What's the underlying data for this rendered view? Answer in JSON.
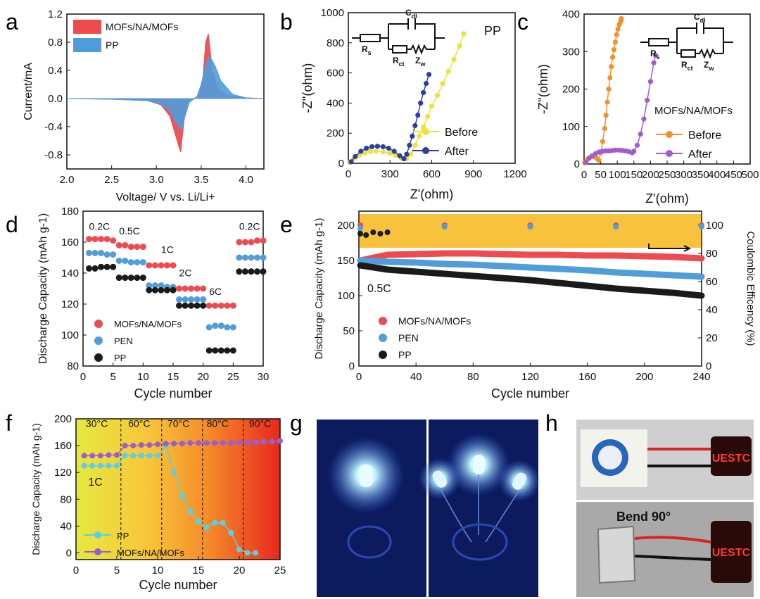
{
  "colors": {
    "red": "#ee4b50",
    "blue": "#4f9ddb",
    "black": "#1a1a1a",
    "yellow": "#f0e03c",
    "navy": "#2b3da8",
    "orange": "#f29126",
    "purple": "#a15bd0",
    "band": "#f9c23c",
    "cyan": "#5ad0e6",
    "violet": "#9a5fcf"
  },
  "panels": {
    "a": "a",
    "b": "b",
    "c": "c",
    "d": "d",
    "e": "e",
    "f": "f",
    "g": "g",
    "h": "h"
  },
  "photos": {
    "g": {
      "caption": "LED lighting photographs"
    },
    "h": {
      "bend_label": "Bend 90°",
      "sign_text": "UESTC"
    }
  },
  "chart_data": [
    {
      "id": "a",
      "type": "area",
      "title": "",
      "xlabel": "Voltage/ V vs. Li/Li+",
      "ylabel": "Current/mA",
      "xlim": [
        2.0,
        4.2
      ],
      "ylim": [
        -1.0,
        1.2
      ],
      "xticks": [
        "2.0",
        "2.5",
        "3.0",
        "3.5",
        "4.0"
      ],
      "yticks": [
        "-0.8",
        "-0.4",
        "0.0",
        "0.4",
        "0.8",
        "1.2"
      ],
      "series": [
        {
          "name": "MOFs/NA/MOFs",
          "color": "#ee4b50",
          "x": [
            2.0,
            2.5,
            2.9,
            3.05,
            3.15,
            3.22,
            3.27,
            3.31,
            3.35,
            3.42,
            3.48,
            3.52,
            3.55,
            3.58,
            3.62,
            3.68,
            3.8,
            4.0,
            4.2
          ],
          "y": [
            0.0,
            -0.01,
            -0.03,
            -0.09,
            -0.25,
            -0.55,
            -0.76,
            -0.3,
            -0.05,
            0.0,
            0.05,
            0.3,
            0.8,
            0.92,
            0.45,
            0.15,
            0.04,
            0.01,
            0.0
          ]
        },
        {
          "name": "PP",
          "color": "#4f9ddb",
          "x": [
            2.0,
            2.5,
            2.9,
            3.05,
            3.15,
            3.22,
            3.28,
            3.32,
            3.37,
            3.45,
            3.5,
            3.55,
            3.58,
            3.62,
            3.66,
            3.72,
            3.85,
            4.0,
            4.2
          ],
          "y": [
            0.0,
            -0.01,
            -0.03,
            -0.08,
            -0.18,
            -0.35,
            -0.45,
            -0.25,
            -0.05,
            0.02,
            0.2,
            0.48,
            0.6,
            0.55,
            0.45,
            0.25,
            0.06,
            0.01,
            0.0
          ]
        }
      ]
    },
    {
      "id": "b",
      "type": "scatter",
      "title": "",
      "label": "PP",
      "xlabel": "Z'(ohm)",
      "ylabel": "-Z''(ohm)",
      "xlim": [
        0,
        1200
      ],
      "ylim": [
        0,
        1000
      ],
      "xticks": [
        "0",
        "300",
        "600",
        "900",
        "1200"
      ],
      "yticks": [
        "0",
        "200",
        "400",
        "600",
        "800",
        "1000"
      ],
      "circuit": {
        "rs": "R",
        "rs_sub": "s",
        "rct": "R",
        "rct_sub": "ct",
        "cdl": "C",
        "cdl_sub": "dl",
        "zw": "Z",
        "zw_sub": "w"
      },
      "series": [
        {
          "name": "Before",
          "color": "#f0e03c",
          "x": [
            10,
            40,
            80,
            120,
            160,
            200,
            250,
            300,
            340,
            380,
            420,
            450,
            480,
            510,
            540,
            570,
            600,
            640,
            680,
            720,
            760,
            800,
            830
          ],
          "y": [
            5,
            30,
            55,
            70,
            78,
            80,
            76,
            66,
            52,
            35,
            30,
            60,
            120,
            180,
            240,
            310,
            380,
            450,
            530,
            610,
            690,
            780,
            860
          ]
        },
        {
          "name": "After",
          "color": "#2b3da8",
          "x": [
            20,
            50,
            90,
            130,
            170,
            210,
            250,
            290,
            330,
            370,
            400,
            420,
            440,
            460,
            480,
            500,
            520,
            540,
            560,
            580
          ],
          "y": [
            10,
            45,
            80,
            100,
            110,
            113,
            110,
            100,
            80,
            50,
            30,
            60,
            120,
            180,
            250,
            320,
            400,
            470,
            530,
            590
          ]
        }
      ]
    },
    {
      "id": "c",
      "type": "scatter",
      "title": "",
      "label": "MOFs/NA/MOFs",
      "xlabel": "Z'(ohm)",
      "ylabel": "-Z''(ohm)",
      "xlim": [
        0,
        500
      ],
      "ylim": [
        0,
        400
      ],
      "xticks": [
        "0",
        "50",
        "100",
        "150",
        "200",
        "250",
        "300",
        "350",
        "400",
        "450",
        "500"
      ],
      "yticks": [
        "0",
        "100",
        "200",
        "300",
        "400"
      ],
      "circuit": {
        "rs": "R",
        "rs_sub": "s",
        "rct": "R",
        "rct_sub": "ct",
        "cdl": "C",
        "cdl_sub": "dl",
        "zw": "Z",
        "zw_sub": "w"
      },
      "series": [
        {
          "name": "Before",
          "color": "#f29126",
          "x": [
            2,
            8,
            14,
            20,
            26,
            32,
            38,
            44,
            50,
            56,
            62,
            66,
            70,
            74,
            78,
            82,
            86,
            90,
            94,
            98,
            102,
            106,
            110,
            112
          ],
          "y": [
            3,
            10,
            16,
            19,
            21,
            19,
            15,
            10,
            30,
            60,
            95,
            130,
            165,
            200,
            230,
            260,
            285,
            305,
            325,
            345,
            360,
            372,
            380,
            388
          ]
        },
        {
          "name": "After",
          "color": "#a15bd0",
          "x": [
            5,
            15,
            25,
            35,
            45,
            55,
            65,
            75,
            85,
            95,
            105,
            115,
            125,
            135,
            145,
            150,
            160,
            170,
            180,
            190,
            200,
            210,
            215
          ],
          "y": [
            5,
            15,
            22,
            28,
            32,
            34,
            35,
            35,
            36,
            37,
            37,
            36,
            35,
            33,
            30,
            34,
            50,
            80,
            120,
            170,
            220,
            270,
            290
          ]
        }
      ]
    },
    {
      "id": "d",
      "type": "scatter",
      "title": "",
      "xlabel": "Cycle number",
      "ylabel": "Discharge Capacity (mAh g-1)",
      "xlim": [
        0,
        30
      ],
      "ylim": [
        80,
        180
      ],
      "xticks": [
        "0",
        "5",
        "10",
        "15",
        "20",
        "25",
        "30"
      ],
      "yticks": [
        "80",
        "100",
        "120",
        "140",
        "160",
        "180"
      ],
      "rate_labels": [
        "0.2C",
        "0.5C",
        "1C",
        "2C",
        "6C",
        "0.2C"
      ],
      "series": [
        {
          "name": "MOFs/NA/MOFs",
          "color": "#ee4b50",
          "x": [
            1,
            2,
            3,
            4,
            5,
            6,
            7,
            8,
            9,
            10,
            11,
            12,
            13,
            14,
            15,
            16,
            17,
            18,
            19,
            20,
            21,
            22,
            23,
            24,
            25,
            26,
            27,
            28,
            29,
            30
          ],
          "y": [
            162,
            162,
            162,
            162,
            161,
            158,
            158,
            157,
            157,
            157,
            145,
            145,
            145,
            145,
            145,
            130,
            130,
            130,
            130,
            130,
            119,
            119,
            119,
            119,
            119,
            160,
            160,
            160,
            161,
            161
          ]
        },
        {
          "name": "PEN",
          "color": "#4f9ddb",
          "x": [
            1,
            2,
            3,
            4,
            5,
            6,
            7,
            8,
            9,
            10,
            11,
            12,
            13,
            14,
            15,
            16,
            17,
            18,
            19,
            20,
            21,
            22,
            23,
            24,
            25,
            26,
            27,
            28,
            29,
            30
          ],
          "y": [
            153,
            153,
            153,
            152,
            152,
            148,
            148,
            147,
            147,
            147,
            132,
            132,
            132,
            131,
            131,
            123,
            123,
            123,
            123,
            123,
            105,
            106,
            106,
            105,
            105,
            150,
            150,
            150,
            150,
            150
          ]
        },
        {
          "name": "PP",
          "color": "#1a1a1a",
          "x": [
            1,
            2,
            3,
            4,
            5,
            6,
            7,
            8,
            9,
            10,
            11,
            12,
            13,
            14,
            15,
            16,
            17,
            18,
            19,
            20,
            21,
            22,
            23,
            24,
            25,
            26,
            27,
            28,
            29,
            30
          ],
          "y": [
            143,
            143,
            144,
            144,
            144,
            137,
            137,
            137,
            137,
            137,
            129,
            129,
            129,
            129,
            129,
            119,
            119,
            119,
            119,
            119,
            90,
            90,
            90,
            90,
            90,
            141,
            141,
            141,
            141,
            141
          ]
        }
      ]
    },
    {
      "id": "e",
      "type": "scatter",
      "title": "",
      "xlabel": "Cycle number",
      "ylabel": "Discharge Capacity (mAh g-1)",
      "y2label": "Coulombic Efficency (%)",
      "annotation": "0.5C",
      "xlim": [
        0,
        240
      ],
      "ylim": [
        0,
        220
      ],
      "y2lim": [
        0,
        110
      ],
      "xticks": [
        "0",
        "40",
        "80",
        "120",
        "160",
        "200",
        "240"
      ],
      "yticks": [
        "0",
        "50",
        "100",
        "150",
        "200"
      ],
      "y2ticks": [
        "0",
        "20",
        "40",
        "60",
        "80",
        "100"
      ],
      "efficiency_band": [
        84,
        108
      ],
      "series": [
        {
          "name": "MOFs/NA/MOFs",
          "color": "#ee4b50",
          "x": [
            1,
            20,
            40,
            60,
            80,
            100,
            120,
            140,
            160,
            180,
            200,
            220,
            240
          ],
          "y": [
            150,
            158,
            159,
            160,
            160,
            159,
            158,
            158,
            157,
            157,
            156,
            155,
            153
          ]
        },
        {
          "name": "PEN",
          "color": "#4f9ddb",
          "x": [
            1,
            20,
            40,
            60,
            80,
            100,
            120,
            140,
            160,
            180,
            200,
            220,
            240
          ],
          "y": [
            150,
            148,
            147,
            145,
            144,
            142,
            140,
            138,
            136,
            133,
            131,
            129,
            127
          ]
        },
        {
          "name": "PP",
          "color": "#1a1a1a",
          "x": [
            1,
            20,
            40,
            60,
            80,
            100,
            120,
            140,
            160,
            180,
            200,
            220,
            240
          ],
          "y": [
            143,
            137,
            134,
            131,
            128,
            125,
            122,
            118,
            114,
            110,
            107,
            104,
            100
          ]
        }
      ],
      "efficiency": [
        {
          "name": "MOFs/NA/MOFs",
          "color": "#ee4b50",
          "x": [
            1,
            60,
            120,
            180,
            240
          ],
          "y": [
            100,
            100,
            100,
            100,
            100
          ]
        },
        {
          "name": "PEN",
          "color": "#4f9ddb",
          "x": [
            1,
            60,
            120,
            180,
            240
          ],
          "y": [
            98,
            99,
            99,
            99,
            99
          ]
        },
        {
          "name": "PP",
          "color": "#1a1a1a",
          "x": [
            1,
            5,
            10,
            15,
            20
          ],
          "y": [
            94,
            93,
            95,
            94,
            95
          ]
        }
      ]
    },
    {
      "id": "f",
      "type": "scatter",
      "title": "",
      "xlabel": "Cycle number",
      "ylabel": "Discharge Capacity (mAh g-1)",
      "annotation": "1C",
      "xlim": [
        0,
        25
      ],
      "ylim": [
        -10,
        200
      ],
      "xticks": [
        "0",
        "5",
        "10",
        "15",
        "20",
        "25"
      ],
      "yticks": [
        "0",
        "40",
        "80",
        "120",
        "160",
        "200"
      ],
      "temperature_labels": [
        "30°C",
        "60°C",
        "70°C",
        "80°C",
        "90°C"
      ],
      "temperature_boundaries": [
        5.5,
        10.5,
        15.5,
        20.5
      ],
      "series": [
        {
          "name": "PP",
          "color": "#5ad0e6",
          "x": [
            1,
            2,
            3,
            4,
            5,
            6,
            7,
            8,
            9,
            10,
            11,
            12,
            13,
            14,
            15,
            16,
            17,
            18,
            19,
            20,
            21,
            22
          ],
          "y": [
            130,
            130,
            130,
            130,
            130,
            145,
            145,
            145,
            145,
            145,
            160,
            120,
            85,
            62,
            47,
            38,
            45,
            45,
            30,
            5,
            0,
            0
          ]
        },
        {
          "name": "MOFs/NA/MOFs",
          "color": "#9a5fcf",
          "x": [
            1,
            2,
            3,
            4,
            5,
            6,
            7,
            8,
            9,
            10,
            11,
            12,
            13,
            14,
            15,
            16,
            17,
            18,
            19,
            20,
            21,
            22,
            23,
            24,
            25
          ],
          "y": [
            145,
            145,
            145,
            146,
            146,
            160,
            160,
            161,
            161,
            162,
            163,
            163,
            163,
            164,
            164,
            164,
            164,
            164,
            164,
            165,
            165,
            165,
            166,
            166,
            167
          ]
        }
      ]
    }
  ]
}
